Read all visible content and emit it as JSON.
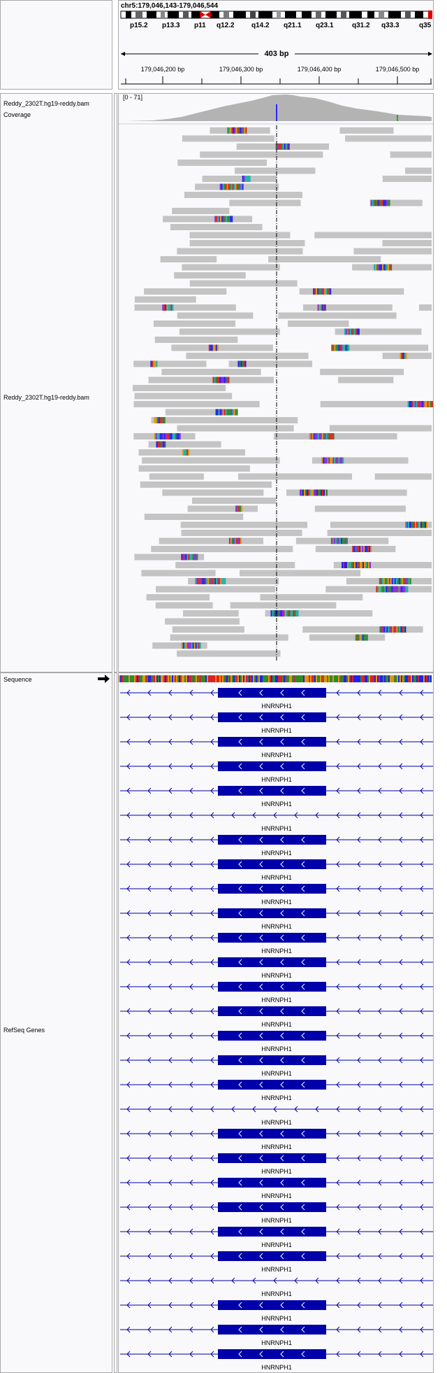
{
  "locus": "chr5:179,046,143-179,046,544",
  "ideogram": {
    "bands": [
      "p15.2",
      "p13.3",
      "p11",
      "q12.2",
      "q14.2",
      "q21.1",
      "q23.1",
      "q31.2",
      "q33.3",
      "q35"
    ]
  },
  "ruler": {
    "span": "403 bp",
    "ticks": [
      "179,046,200 bp",
      "179,046,300 bp",
      "179,046,400 bp",
      "179,046,500 bp"
    ]
  },
  "tracks": {
    "coverage": {
      "name": "Reddy_2302T.hg19-reddy.bam Coverage",
      "range": "[0 - 71]"
    },
    "alignment": {
      "name": "Reddy_2302T.hg19-reddy.bam"
    },
    "sequence": {
      "name": "Sequence"
    },
    "genes": {
      "name": "RefSeq Genes",
      "gene_name": "HNRNPH1",
      "row_count": 28
    }
  },
  "colors": {
    "read": "#c4c4c4",
    "coverage": "#b3b3b3",
    "gene": "#0000aa",
    "panel": "#f9f9fb",
    "border": "#a8a8a8"
  }
}
